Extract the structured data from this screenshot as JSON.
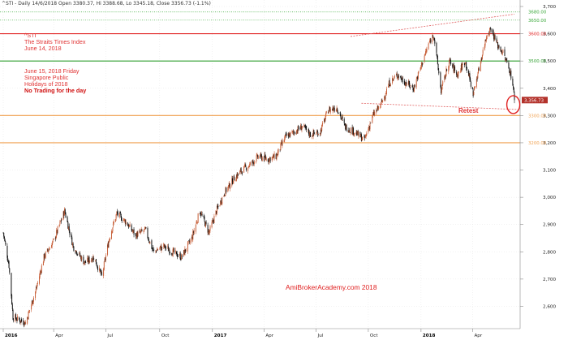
{
  "header": {
    "text": "^STI - Daily 14/6/2018 Open 3380.37, Hi 3388.68, Lo 3345.18, Close 3356.73 (-1.1%)"
  },
  "annotations": {
    "ticker": "^STI",
    "index_name": "The Straits Times Index",
    "index_date": "June 14, 2018",
    "holiday_date": "June 15, 2018 Friday",
    "holiday_line1": "Singapore Public",
    "holiday_line2": "Holidays of 2018",
    "no_trading": "No Trading for the day",
    "retest": "Retest",
    "watermark": "AmiBrokerAcademy.com  2018"
  },
  "colors": {
    "background": "#ffffff",
    "candle_up": "#c8603a",
    "candle_down": "#111111",
    "resistance_red": "#e02020",
    "support_green": "#2e9e2e",
    "support_orange": "#f0a050",
    "dotted_green": "#3aa83a",
    "trendline": "#e06060",
    "last_price_bg": "#b3322b"
  },
  "chart_data": {
    "type": "candlestick",
    "title": "^STI - Daily",
    "ylim": [
      2530,
      3700
    ],
    "y_ticks": [
      2600,
      2700,
      2800,
      2900,
      3000,
      3100,
      3200,
      3300,
      3400,
      3500,
      3600,
      3700
    ],
    "y_tick_labels": [
      "2,600",
      "2,700",
      "2,800",
      "2,900",
      "3,000",
      "3,100",
      "3,200",
      "3,300",
      "3,400",
      "3,500",
      "3,600",
      "3,700"
    ],
    "x_range": [
      "2016-01-04",
      "2018-06-14"
    ],
    "x_ticks": [
      {
        "date": "2016-01-04",
        "label": "2016",
        "bold": true
      },
      {
        "date": "2016-04-01",
        "label": "Apr",
        "bold": false
      },
      {
        "date": "2016-07-01",
        "label": "Jul",
        "bold": false
      },
      {
        "date": "2016-10-03",
        "label": "Oct",
        "bold": false
      },
      {
        "date": "2017-01-03",
        "label": "2017",
        "bold": true
      },
      {
        "date": "2017-04-03",
        "label": "Apr",
        "bold": false
      },
      {
        "date": "2017-07-03",
        "label": "Jul",
        "bold": false
      },
      {
        "date": "2017-10-02",
        "label": "Oct",
        "bold": false
      },
      {
        "date": "2018-01-02",
        "label": "2018",
        "bold": true
      },
      {
        "date": "2018-04-02",
        "label": "Apr",
        "bold": false
      }
    ],
    "last_price": {
      "value": 3356.73,
      "label": "3,356.73"
    },
    "last_bar": {
      "date": "2018-06-14",
      "open": 3380.37,
      "high": 3388.68,
      "low": 3345.18,
      "close": 3356.73
    },
    "horizontal_levels": [
      {
        "value": 3680,
        "label": "3680.00",
        "color": "#3aa83a",
        "style": "dotted"
      },
      {
        "value": 3650,
        "label": "3650.00",
        "color": "#3aa83a",
        "style": "dotted"
      },
      {
        "value": 3600,
        "label": "3600.00",
        "color": "#e02020",
        "style": "solid"
      },
      {
        "value": 3500,
        "label": "3500.00",
        "color": "#2e9e2e",
        "style": "solid"
      },
      {
        "value": 3300,
        "label": "3300.00",
        "color": "#f0a050",
        "style": "solid"
      },
      {
        "value": 3200,
        "label": "3200.00",
        "color": "#f0a050",
        "style": "solid"
      }
    ],
    "trendlines": [
      {
        "from": {
          "date": "2017-09-01",
          "value": 3590
        },
        "to": {
          "date": "2018-06-14",
          "value": 3672
        }
      },
      {
        "from": {
          "date": "2017-09-20",
          "value": 3345
        },
        "to": {
          "date": "2018-06-20",
          "value": 3322
        }
      }
    ],
    "retest_marker": {
      "date": "2018-06-12",
      "value": 3340
    },
    "closes": [
      {
        "date": "2016-01-04",
        "value": 2870
      },
      {
        "date": "2016-01-14",
        "value": 2750
      },
      {
        "date": "2016-01-21",
        "value": 2560
      },
      {
        "date": "2016-02-12",
        "value": 2540
      },
      {
        "date": "2016-03-01",
        "value": 2660
      },
      {
        "date": "2016-03-15",
        "value": 2780
      },
      {
        "date": "2016-04-01",
        "value": 2840
      },
      {
        "date": "2016-04-20",
        "value": 2950
      },
      {
        "date": "2016-05-05",
        "value": 2820
      },
      {
        "date": "2016-05-25",
        "value": 2760
      },
      {
        "date": "2016-06-10",
        "value": 2780
      },
      {
        "date": "2016-06-24",
        "value": 2710
      },
      {
        "date": "2016-07-08",
        "value": 2860
      },
      {
        "date": "2016-07-20",
        "value": 2940
      },
      {
        "date": "2016-08-05",
        "value": 2910
      },
      {
        "date": "2016-08-22",
        "value": 2860
      },
      {
        "date": "2016-09-08",
        "value": 2880
      },
      {
        "date": "2016-09-22",
        "value": 2800
      },
      {
        "date": "2016-10-10",
        "value": 2820
      },
      {
        "date": "2016-10-25",
        "value": 2800
      },
      {
        "date": "2016-11-10",
        "value": 2780
      },
      {
        "date": "2016-11-28",
        "value": 2850
      },
      {
        "date": "2016-12-12",
        "value": 2950
      },
      {
        "date": "2016-12-28",
        "value": 2870
      },
      {
        "date": "2017-01-10",
        "value": 2950
      },
      {
        "date": "2017-01-25",
        "value": 3020
      },
      {
        "date": "2017-02-10",
        "value": 3070
      },
      {
        "date": "2017-02-24",
        "value": 3100
      },
      {
        "date": "2017-03-10",
        "value": 3120
      },
      {
        "date": "2017-03-24",
        "value": 3150
      },
      {
        "date": "2017-04-10",
        "value": 3140
      },
      {
        "date": "2017-04-24",
        "value": 3150
      },
      {
        "date": "2017-05-10",
        "value": 3220
      },
      {
        "date": "2017-05-26",
        "value": 3240
      },
      {
        "date": "2017-06-09",
        "value": 3260
      },
      {
        "date": "2017-06-23",
        "value": 3230
      },
      {
        "date": "2017-07-10",
        "value": 3240
      },
      {
        "date": "2017-07-24",
        "value": 3320
      },
      {
        "date": "2017-08-08",
        "value": 3330
      },
      {
        "date": "2017-08-22",
        "value": 3260
      },
      {
        "date": "2017-09-08",
        "value": 3240
      },
      {
        "date": "2017-09-25",
        "value": 3210
      },
      {
        "date": "2017-10-10",
        "value": 3300
      },
      {
        "date": "2017-10-24",
        "value": 3340
      },
      {
        "date": "2017-11-08",
        "value": 3420
      },
      {
        "date": "2017-11-22",
        "value": 3450
      },
      {
        "date": "2017-12-06",
        "value": 3420
      },
      {
        "date": "2017-12-20",
        "value": 3400
      },
      {
        "date": "2018-01-05",
        "value": 3500
      },
      {
        "date": "2018-01-15",
        "value": 3560
      },
      {
        "date": "2018-01-24",
        "value": 3600
      },
      {
        "date": "2018-02-06",
        "value": 3390
      },
      {
        "date": "2018-02-20",
        "value": 3500
      },
      {
        "date": "2018-03-06",
        "value": 3450
      },
      {
        "date": "2018-03-20",
        "value": 3500
      },
      {
        "date": "2018-04-03",
        "value": 3380
      },
      {
        "date": "2018-04-16",
        "value": 3500
      },
      {
        "date": "2018-04-27",
        "value": 3600
      },
      {
        "date": "2018-05-04",
        "value": 3620
      },
      {
        "date": "2018-05-15",
        "value": 3560
      },
      {
        "date": "2018-05-25",
        "value": 3530
      },
      {
        "date": "2018-06-05",
        "value": 3470
      },
      {
        "date": "2018-06-11",
        "value": 3420
      },
      {
        "date": "2018-06-14",
        "value": 3356.73
      }
    ]
  }
}
